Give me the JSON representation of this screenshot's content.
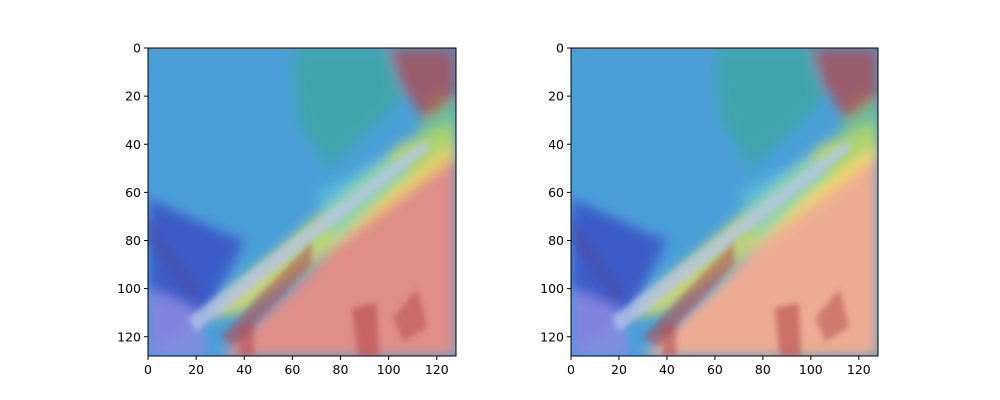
{
  "chart_data": [
    {
      "type": "heatmap",
      "title": "",
      "xlabel": "",
      "ylabel": "",
      "xlim": [
        0,
        128
      ],
      "ylim": [
        128,
        0
      ],
      "xticks": [
        0,
        20,
        40,
        60,
        80,
        100,
        120
      ],
      "yticks": [
        0,
        20,
        40,
        60,
        80,
        100,
        120
      ],
      "colormap": "jet",
      "overlay": "heatmap over photo",
      "regions": {
        "upper_left": "blue-cyan",
        "diagonal_edge": "yellow-green-red band",
        "lower_right": "red",
        "bottom_left": "purple-blue"
      }
    },
    {
      "type": "heatmap",
      "title": "",
      "xlabel": "",
      "ylabel": "",
      "xlim": [
        0,
        128
      ],
      "ylim": [
        128,
        0
      ],
      "xticks": [
        0,
        20,
        40,
        60,
        80,
        100,
        120
      ],
      "yticks": [
        0,
        20,
        40,
        60,
        80,
        100,
        120
      ],
      "colormap": "jet",
      "overlay": "heatmap over photo",
      "regions": {
        "upper_left": "blue-cyan",
        "diagonal_edge": "yellow-green-red band",
        "lower_right": "orange-peach",
        "bottom_left": "purple-blue"
      }
    }
  ],
  "colors": {
    "blue": "#4a9fd8",
    "deep_blue": "#3a55c8",
    "cyan": "#6ad3d9",
    "green": "#8fd46a",
    "yellow": "#f2e65a",
    "red_left": "#e88d84",
    "orange_right": "#f6ad8e",
    "dark_red": "#b4474a",
    "purple": "#8a8ae0",
    "teal": "#3fa6a4"
  }
}
